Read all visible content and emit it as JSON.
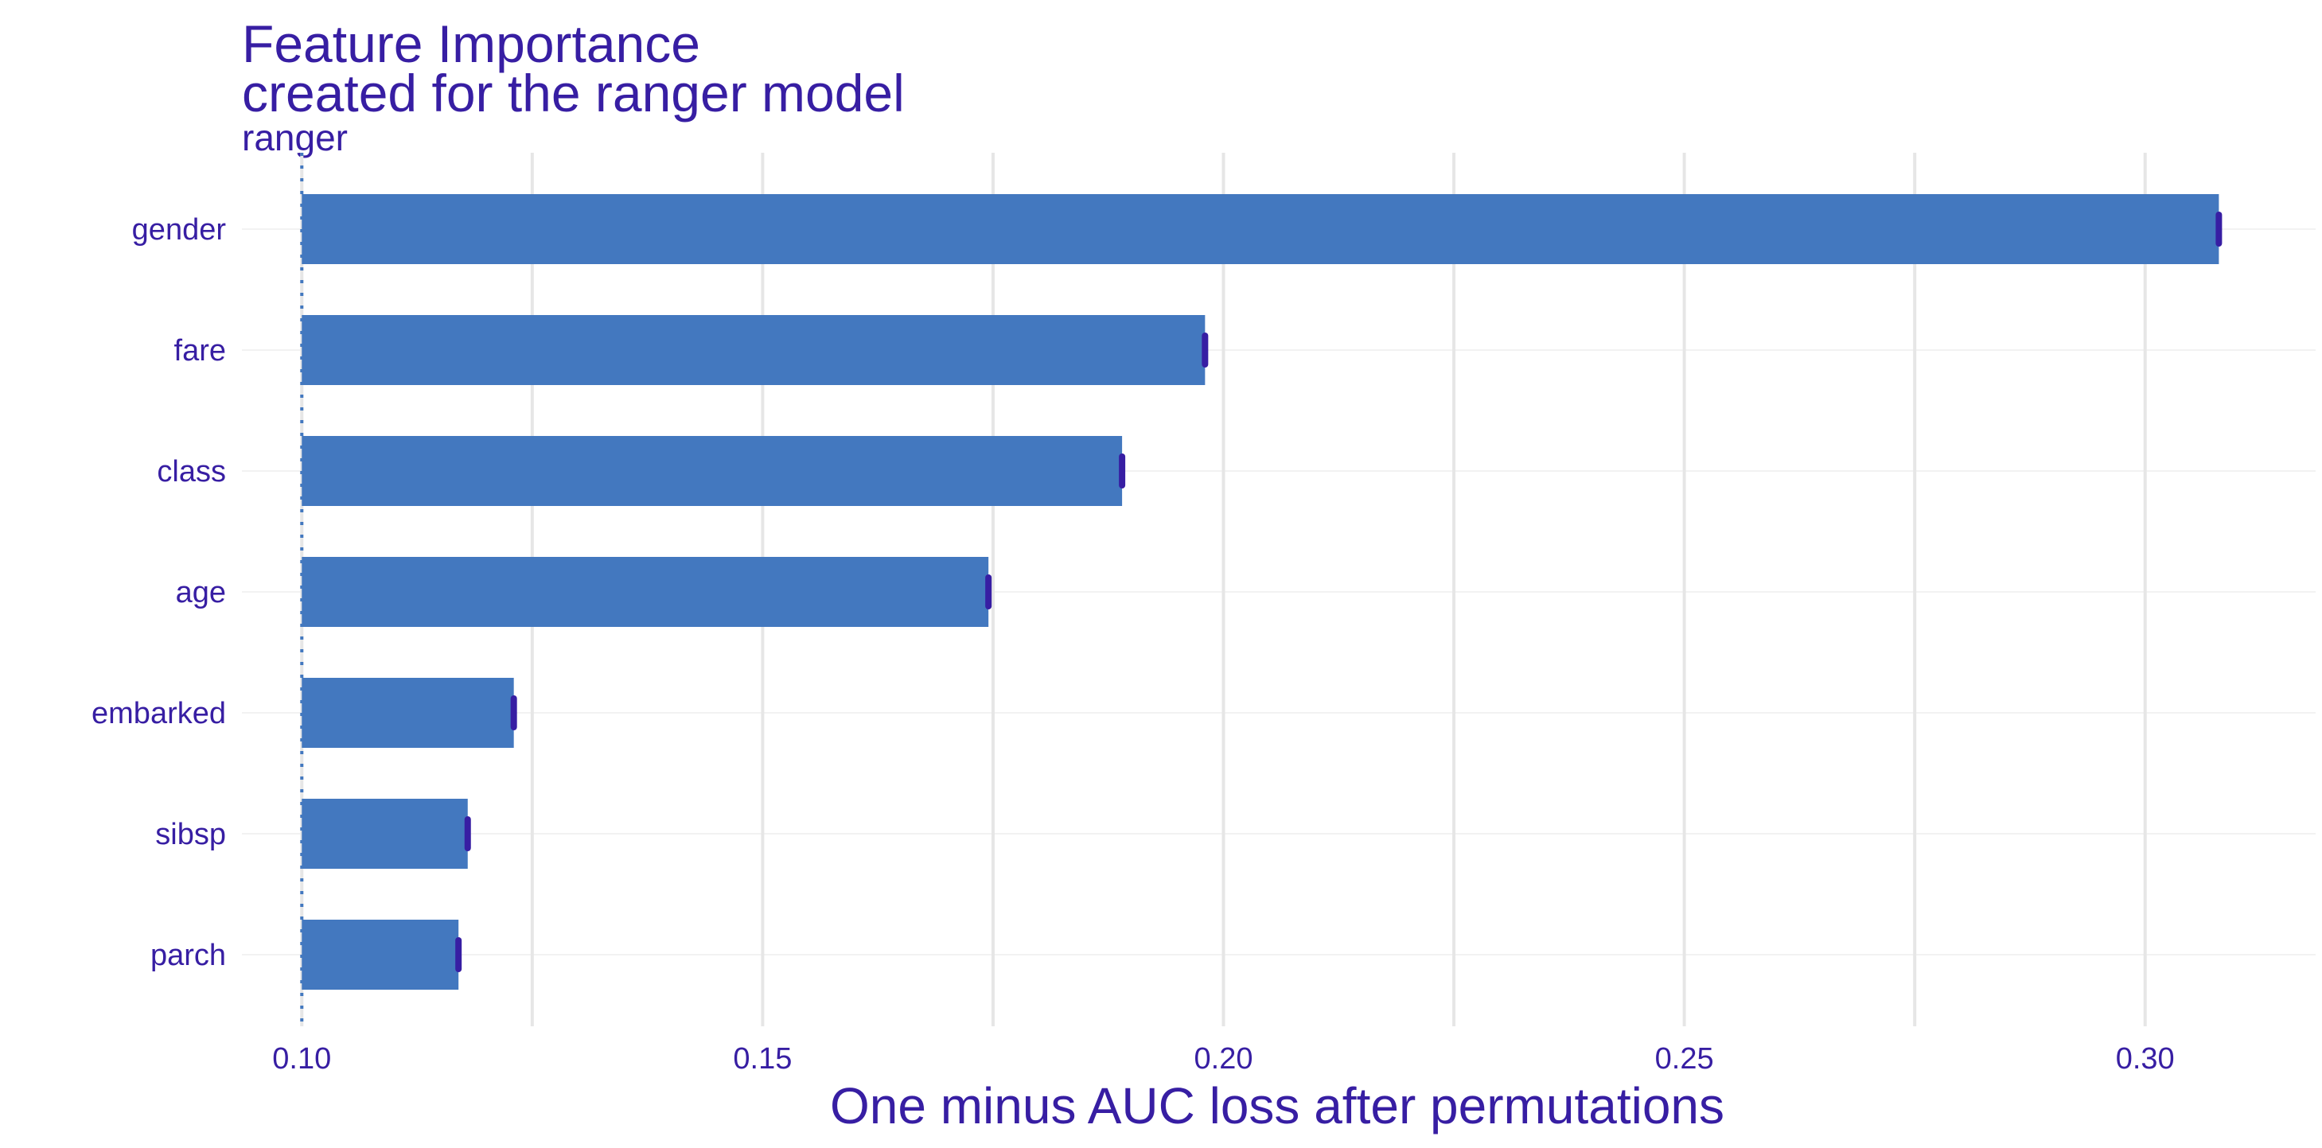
{
  "chart_data": {
    "type": "bar",
    "orientation": "horizontal",
    "title": "Feature Importance",
    "subtitle": "created for the ranger model",
    "panel_label": "ranger",
    "xlabel": "One minus AUC loss after permutations",
    "ylabel": "",
    "baseline": 0.1,
    "xlim": [
      0.0935,
      0.3185
    ],
    "xticks": [
      0.1,
      0.15,
      0.2,
      0.25,
      0.3
    ],
    "xtick_labels": [
      "0.10",
      "0.15",
      "0.20",
      "0.25",
      "0.30"
    ],
    "categories": [
      "gender",
      "fare",
      "class",
      "age",
      "embarked",
      "sibsp",
      "parch"
    ],
    "values": [
      0.308,
      0.198,
      0.189,
      0.1745,
      0.123,
      0.118,
      0.117
    ],
    "grid": true,
    "legend": "none",
    "colors": {
      "bar": "#4378bf",
      "text": "#371ea3",
      "whisker": "#371ea3"
    }
  }
}
